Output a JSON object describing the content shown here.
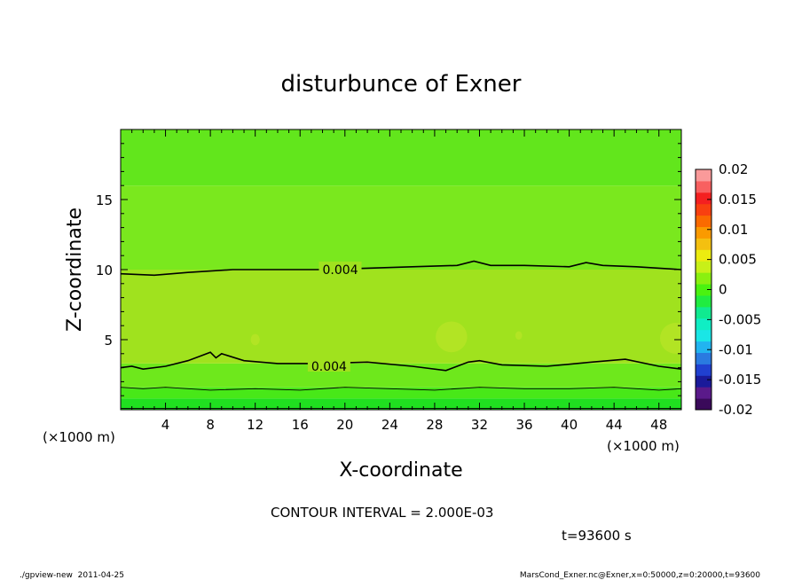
{
  "chart_data": {
    "type": "heatmap",
    "title": "disturbunce of Exner",
    "xlabel": "X-coordinate",
    "ylabel": "Z-coordinate",
    "x_unit": "(×1000 m)",
    "y_unit": "(×1000 m)",
    "xlim": [
      0,
      50
    ],
    "ylim": [
      0,
      20
    ],
    "x_ticks": [
      4,
      8,
      12,
      16,
      20,
      24,
      28,
      32,
      36,
      40,
      44,
      48
    ],
    "y_ticks": [
      5,
      10,
      15
    ],
    "contour_interval_text": "CONTOUR INTERVAL = 2.000E-03",
    "time_text": "t=93600 s",
    "contour_labels": [
      {
        "text": "0.004",
        "x": 18,
        "z": 10.0
      },
      {
        "text": "0.004",
        "x": 17,
        "z": 3.1
      }
    ],
    "colorbar": {
      "min": -0.02,
      "max": 0.02,
      "ticks": [
        "0.02",
        "0.015",
        "0.01",
        "0.005",
        "0",
        "-0.005",
        "-0.01",
        "-0.015",
        "-0.02"
      ],
      "colors": [
        "#3a0a5a",
        "#5a1a8a",
        "#1a1a9a",
        "#2040d0",
        "#2a7ae0",
        "#22b4f0",
        "#1ae6e6",
        "#10eec4",
        "#10ea90",
        "#20ec40",
        "#4af210",
        "#8af010",
        "#c8f018",
        "#ecec10",
        "#f4c010",
        "#fa9a00",
        "#fa6a00",
        "#f84010",
        "#f42020",
        "#f86060",
        "#fa9a9a"
      ]
    },
    "field_bands": [
      {
        "z_from": 0.0,
        "z_to": 0.8,
        "value": 0.0,
        "color": "#20e020"
      },
      {
        "z_from": 0.8,
        "z_to": 1.6,
        "value": 0.002,
        "color": "#48e818"
      },
      {
        "z_from": 1.6,
        "z_to": 3.3,
        "value": 0.003,
        "color": "#6ee81c"
      },
      {
        "z_from": 3.3,
        "z_to": 10.0,
        "value": 0.005,
        "color": "#a0e21e"
      },
      {
        "z_from": 10.0,
        "z_to": 16.0,
        "value": 0.003,
        "color": "#7ae81e"
      },
      {
        "z_from": 16.0,
        "z_to": 20.0,
        "value": 0.002,
        "color": "#62e61c"
      }
    ],
    "contours": [
      {
        "level": 0.004,
        "points": [
          [
            0,
            9.7
          ],
          [
            3,
            9.6
          ],
          [
            6,
            9.8
          ],
          [
            10,
            10.0
          ],
          [
            14,
            10.0
          ],
          [
            18,
            10.0
          ],
          [
            22,
            10.1
          ],
          [
            26,
            10.2
          ],
          [
            30,
            10.3
          ],
          [
            31.5,
            10.6
          ],
          [
            33,
            10.3
          ],
          [
            36,
            10.3
          ],
          [
            40,
            10.2
          ],
          [
            41.5,
            10.5
          ],
          [
            43,
            10.3
          ],
          [
            46,
            10.2
          ],
          [
            50,
            10.0
          ]
        ]
      },
      {
        "level": 0.004,
        "points": [
          [
            0,
            3.0
          ],
          [
            1,
            3.1
          ],
          [
            2,
            2.9
          ],
          [
            4,
            3.1
          ],
          [
            6,
            3.5
          ],
          [
            7,
            3.8
          ],
          [
            8,
            4.1
          ],
          [
            8.5,
            3.7
          ],
          [
            9,
            4.0
          ],
          [
            11,
            3.5
          ],
          [
            14,
            3.3
          ],
          [
            18,
            3.3
          ],
          [
            22,
            3.4
          ],
          [
            26,
            3.1
          ],
          [
            29,
            2.8
          ],
          [
            31,
            3.4
          ],
          [
            32,
            3.5
          ],
          [
            34,
            3.2
          ],
          [
            38,
            3.1
          ],
          [
            42,
            3.4
          ],
          [
            45,
            3.6
          ],
          [
            48,
            3.1
          ],
          [
            50,
            2.9
          ]
        ]
      },
      {
        "level": 0.002,
        "points": [
          [
            0,
            1.6
          ],
          [
            2,
            1.5
          ],
          [
            4,
            1.6
          ],
          [
            8,
            1.4
          ],
          [
            12,
            1.5
          ],
          [
            16,
            1.4
          ],
          [
            20,
            1.6
          ],
          [
            24,
            1.5
          ],
          [
            28,
            1.4
          ],
          [
            32,
            1.6
          ],
          [
            36,
            1.5
          ],
          [
            40,
            1.5
          ],
          [
            44,
            1.6
          ],
          [
            48,
            1.4
          ],
          [
            50,
            1.5
          ]
        ]
      },
      {
        "level": 0.0,
        "points": [
          [
            0,
            0.1
          ],
          [
            10,
            0.1
          ],
          [
            20,
            0.1
          ],
          [
            30,
            0.1
          ],
          [
            40,
            0.1
          ],
          [
            50,
            0.1
          ]
        ]
      }
    ],
    "blobs": [
      {
        "x": 29.5,
        "z": 5.2,
        "rx": 1.4,
        "rz": 1.1
      },
      {
        "x": 12.0,
        "z": 5.0,
        "rx": 0.4,
        "rz": 0.4
      },
      {
        "x": 35.5,
        "z": 5.3,
        "rx": 0.3,
        "rz": 0.3
      },
      {
        "x": 49.5,
        "z": 5.1,
        "rx": 1.4,
        "rz": 1.1
      }
    ]
  },
  "footer": {
    "left": "./gpview-new  2011-04-25",
    "right": "MarsCond_Exner.nc@Exner,x=0:50000,z=0:20000,t=93600"
  }
}
